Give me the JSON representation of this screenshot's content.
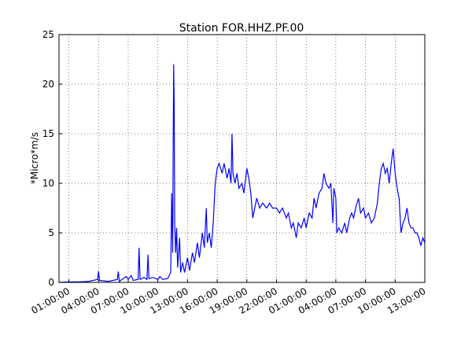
{
  "chart_data": {
    "type": "line",
    "title": "Station FOR.HHZ.PF.00",
    "y_label": "*Micro*m/s",
    "xlim": [
      0,
      37
    ],
    "ylim": [
      0,
      25
    ],
    "grid": true,
    "xticks": [
      {
        "value": 1,
        "label": "01:00:00"
      },
      {
        "value": 4,
        "label": "04:00:00"
      },
      {
        "value": 7,
        "label": "07:00:00"
      },
      {
        "value": 10,
        "label": "10:00:00"
      },
      {
        "value": 13,
        "label": "13:00:00"
      },
      {
        "value": 16,
        "label": "16:00:00"
      },
      {
        "value": 19,
        "label": "19:00:00"
      },
      {
        "value": 22,
        "label": "22:00:00"
      },
      {
        "value": 25,
        "label": "01:00:00"
      },
      {
        "value": 28,
        "label": "04:00:00"
      },
      {
        "value": 31,
        "label": "07:00:00"
      },
      {
        "value": 34,
        "label": "10:00:00"
      },
      {
        "value": 37,
        "label": "13:00:00"
      }
    ],
    "yticks": [
      0,
      5,
      10,
      15,
      20,
      25
    ],
    "series": [
      {
        "color": "#0000ff",
        "x": [
          0,
          1,
          2,
          3,
          3.9,
          4.0,
          4.1,
          5,
          5.9,
          6.0,
          6.1,
          6.8,
          7,
          7.3,
          7.5,
          8.0,
          8.1,
          8.2,
          8.6,
          8.9,
          9.0,
          9.1,
          9.5,
          10.0,
          10.2,
          10.5,
          11.0,
          11.3,
          11.4,
          11.5,
          11.55,
          11.6,
          11.65,
          11.7,
          11.8,
          11.9,
          12.0,
          12.2,
          12.3,
          12.5,
          12.7,
          13.0,
          13.2,
          13.5,
          13.7,
          14.0,
          14.2,
          14.5,
          14.7,
          14.9,
          15.0,
          15.2,
          15.4,
          15.6,
          15.8,
          16.0,
          16.2,
          16.5,
          16.7,
          17.0,
          17.2,
          17.4,
          17.5,
          17.6,
          17.8,
          18.0,
          18.2,
          18.5,
          18.7,
          19.0,
          19.2,
          19.4,
          19.6,
          19.8,
          20.0,
          20.3,
          20.6,
          21.0,
          21.3,
          21.6,
          22.0,
          22.3,
          22.6,
          23.0,
          23.2,
          23.5,
          23.7,
          24.0,
          24.2,
          24.5,
          24.8,
          25.0,
          25.3,
          25.6,
          25.8,
          26.0,
          26.3,
          26.6,
          26.8,
          27.0,
          27.3,
          27.5,
          27.7,
          27.8,
          28.0,
          28.1,
          28.3,
          28.6,
          28.9,
          29.1,
          29.4,
          29.6,
          29.8,
          30.0,
          30.3,
          30.5,
          30.8,
          31.0,
          31.3,
          31.6,
          31.9,
          32.2,
          32.4,
          32.6,
          32.8,
          33.0,
          33.2,
          33.4,
          33.6,
          33.8,
          34.0,
          34.2,
          34.4,
          34.6,
          34.8,
          35.0,
          35.2,
          35.4,
          35.6,
          35.8,
          36.0,
          36.2,
          36.4,
          36.6,
          36.8,
          37
        ],
        "values": [
          0,
          0.05,
          0.05,
          0.1,
          0.3,
          1.1,
          0.2,
          0.1,
          0.3,
          1.1,
          0.1,
          0.6,
          0.3,
          0.7,
          0.2,
          0.3,
          3.5,
          0.3,
          0.5,
          0.3,
          2.8,
          0.4,
          0.5,
          0.3,
          0.6,
          0.3,
          0.4,
          1,
          9,
          3,
          14,
          22,
          18,
          6,
          3,
          5.5,
          1.5,
          4.5,
          1,
          2,
          1,
          2.5,
          1.2,
          3,
          2,
          4,
          2.5,
          5,
          3.5,
          7.5,
          4,
          5,
          3.5,
          6,
          10,
          11.5,
          12,
          11,
          12,
          10.5,
          11.5,
          10,
          15,
          11,
          10,
          11,
          9.5,
          10,
          9,
          11.5,
          10.5,
          9,
          6.5,
          7.5,
          8.5,
          7.5,
          8,
          7.5,
          8,
          7.5,
          7.5,
          7,
          7.5,
          6.5,
          7,
          5.5,
          6,
          4.5,
          6,
          5.5,
          6.5,
          5.5,
          7,
          6.5,
          8.5,
          7.5,
          9,
          9.5,
          11,
          10,
          9.5,
          10,
          6,
          9.5,
          8.5,
          5,
          5.5,
          5,
          6,
          5,
          6.5,
          7,
          6.5,
          7.5,
          8.5,
          7,
          7.5,
          6.5,
          7,
          6,
          6.5,
          8,
          10,
          11.5,
          12,
          11,
          11.5,
          10,
          12,
          13.5,
          11,
          9.5,
          8.5,
          5,
          6,
          6.5,
          7.5,
          6,
          5.5,
          5.5,
          5,
          5,
          4.5,
          3.7,
          4.5,
          4
        ]
      }
    ]
  }
}
